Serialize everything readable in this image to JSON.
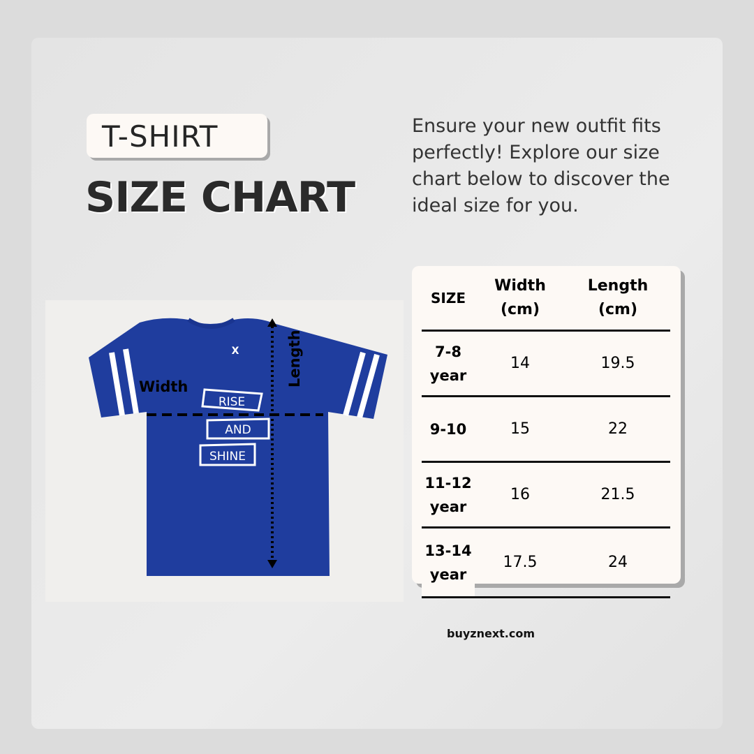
{
  "header": {
    "badge": "T-SHIRT",
    "title": "SIZE CHART"
  },
  "intro": "Ensure your new outfit fits perfectly! Explore our size chart below to discover the ideal size for you.",
  "image": {
    "print_lines": [
      "RISE",
      "AND",
      "SHINE"
    ],
    "width_label": "Width",
    "length_label": "Length",
    "shirt_color": "#1f3d9e"
  },
  "table": {
    "headers": [
      "SIZE",
      "Width (cm)",
      "Length (cm)"
    ],
    "rows": [
      {
        "size": "7-8 year",
        "width": "14",
        "length": "19.5"
      },
      {
        "size": "9-10",
        "width": "15",
        "length": "22"
      },
      {
        "size": "11-12 year",
        "width": "16",
        "length": "21.5"
      },
      {
        "size": "13-14 year",
        "width": "17.5",
        "length": "24"
      }
    ]
  },
  "footer": {
    "website": "buyznext.com"
  }
}
